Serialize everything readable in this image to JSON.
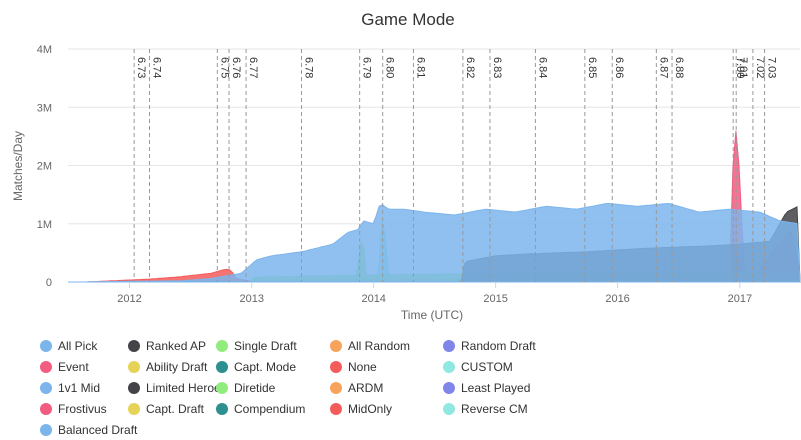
{
  "chart_data": {
    "type": "area",
    "title": "Game Mode",
    "xlabel": "Time (UTC)",
    "ylabel": "Matches/Day",
    "x_ticks": [
      "2012",
      "2013",
      "2014",
      "2015",
      "2016",
      "2017"
    ],
    "y_ticks": [
      "0",
      "1M",
      "2M",
      "3M",
      "4M"
    ],
    "ylim": [
      0,
      4000000
    ],
    "xlim": [
      "2011-07-01",
      "2017-06-30"
    ],
    "grid": "horizontal",
    "legend_position": "bottom",
    "patches": [
      {
        "label": "6.73",
        "date": "2012-01-15"
      },
      {
        "label": "6.74",
        "date": "2012-03-01"
      },
      {
        "label": "6.75",
        "date": "2012-09-20"
      },
      {
        "label": "6.76",
        "date": "2012-10-25"
      },
      {
        "label": "6.77",
        "date": "2012-12-15"
      },
      {
        "label": "6.78",
        "date": "2013-05-30"
      },
      {
        "label": "6.79",
        "date": "2013-11-20"
      },
      {
        "label": "6.80",
        "date": "2014-01-28"
      },
      {
        "label": "6.81",
        "date": "2014-04-30"
      },
      {
        "label": "6.82",
        "date": "2014-09-25"
      },
      {
        "label": "6.83",
        "date": "2014-12-15"
      },
      {
        "label": "6.84",
        "date": "2015-04-30"
      },
      {
        "label": "6.85",
        "date": "2015-09-25"
      },
      {
        "label": "6.86",
        "date": "2015-12-16"
      },
      {
        "label": "6.87",
        "date": "2016-04-26"
      },
      {
        "label": "6.88",
        "date": "2016-06-12"
      },
      {
        "label": "7.00",
        "date": "2016-12-12"
      },
      {
        "label": "7.01",
        "date": "2016-12-21"
      },
      {
        "label": "7.02",
        "date": "2017-02-09"
      },
      {
        "label": "7.03",
        "date": "2017-03-16"
      }
    ],
    "series": [
      {
        "name": "All Pick",
        "color": "#7cb5ec",
        "x": [
          "2011-09-01",
          "2012-06-01",
          "2012-09-01",
          "2012-12-01",
          "2013-01-15",
          "2013-03-01",
          "2013-06-01",
          "2013-09-01",
          "2013-10-15",
          "2013-11-15",
          "2013-12-01",
          "2014-01-01",
          "2014-01-20",
          "2014-02-15",
          "2014-04-01",
          "2014-06-01",
          "2014-09-01",
          "2014-12-01",
          "2015-03-01",
          "2015-06-01",
          "2015-09-01",
          "2015-12-01",
          "2016-03-01",
          "2016-06-01",
          "2016-09-01",
          "2016-12-01",
          "2017-03-01",
          "2017-05-01",
          "2017-06-25"
        ],
        "values": [
          5000,
          20000,
          60000,
          150000,
          380000,
          450000,
          520000,
          650000,
          850000,
          900000,
          1050000,
          1000000,
          1350000,
          1250000,
          1250000,
          1200000,
          1150000,
          1250000,
          1200000,
          1300000,
          1250000,
          1350000,
          1300000,
          1350000,
          1200000,
          1250000,
          1200000,
          1050000,
          1000000
        ]
      },
      {
        "name": "Ranked AP",
        "color": "#434348",
        "x": [
          "2014-09-20",
          "2014-10-01",
          "2015-01-01",
          "2015-04-01",
          "2015-07-01",
          "2015-10-01",
          "2016-01-01",
          "2016-04-01",
          "2016-07-01",
          "2016-10-01",
          "2017-01-01",
          "2017-04-01",
          "2017-05-20",
          "2017-06-25"
        ],
        "values": [
          0,
          350000,
          450000,
          480000,
          500000,
          520000,
          550000,
          580000,
          600000,
          620000,
          650000,
          700000,
          1200000,
          1300000
        ]
      },
      {
        "name": "Single Draft",
        "color": "#90ed7d",
        "x": [
          "2013-01-01",
          "2013-06-01",
          "2014-01-01",
          "2015-01-01",
          "2016-01-01",
          "2017-01-01",
          "2017-06-25"
        ],
        "values": [
          80000,
          100000,
          120000,
          150000,
          180000,
          160000,
          140000
        ]
      },
      {
        "name": "All Random",
        "color": "#f7a35c",
        "x": [
          "2013-01-01",
          "2014-01-01",
          "2015-01-01",
          "2016-01-01",
          "2017-01-01",
          "2017-06-25"
        ],
        "values": [
          30000,
          40000,
          50000,
          45000,
          40000,
          35000
        ]
      },
      {
        "name": "Random Draft",
        "color": "#8085e9",
        "x": [
          "2013-01-01",
          "2014-01-01",
          "2015-01-01",
          "2016-01-01",
          "2017-06-25"
        ],
        "values": [
          20000,
          25000,
          30000,
          25000,
          20000
        ]
      },
      {
        "name": "Event",
        "color": "#f15c80",
        "x": [
          "2016-12-01",
          "2016-12-15",
          "2016-12-25",
          "2017-01-15",
          "2017-02-01",
          "2017-06-01",
          "2017-06-25"
        ],
        "values": [
          0,
          2700000,
          2500000,
          100000,
          0,
          900000,
          300000
        ]
      },
      {
        "name": "Ability Draft",
        "color": "#e4d354",
        "x": [
          "2013-12-01",
          "2014-06-01",
          "2015-01-01",
          "2016-01-01",
          "2017-06-25"
        ],
        "values": [
          0,
          30000,
          40000,
          35000,
          30000
        ]
      },
      {
        "name": "Capt. Mode",
        "color": "#2b908f",
        "x": [
          "2012-01-01",
          "2013-01-01",
          "2014-01-01",
          "2015-01-01",
          "2016-01-01",
          "2017-06-25"
        ],
        "values": [
          5000,
          10000,
          15000,
          15000,
          12000,
          10000
        ]
      },
      {
        "name": "None",
        "color": "#f45b5b",
        "x": [
          "2011-09-01",
          "2012-03-01",
          "2012-06-01",
          "2012-09-01",
          "2012-10-15",
          "2012-11-01",
          "2012-11-15",
          "2013-01-01",
          "2017-06-25"
        ],
        "values": [
          3000,
          50000,
          90000,
          150000,
          220000,
          200000,
          60000,
          10000,
          5000
        ]
      },
      {
        "name": "CUSTOM",
        "color": "#91e8e1",
        "x": [
          "2014-01-15",
          "2014-01-22",
          "2014-01-31",
          "2014-02-10",
          "2014-02-20"
        ],
        "values": [
          0,
          1000000,
          1150000,
          300000,
          0
        ]
      },
      {
        "name": "1v1 Mid",
        "color": "#7cb5ec",
        "x": [
          "2015-12-01",
          "2016-04-01",
          "2016-10-01",
          "2017-06-25"
        ],
        "values": [
          0,
          20000,
          25000,
          20000
        ]
      },
      {
        "name": "Limited Heroes",
        "color": "#434348",
        "x": [
          "2012-06-01",
          "2014-01-01",
          "2017-06-25"
        ],
        "values": [
          1000,
          3000,
          2000
        ]
      },
      {
        "name": "Diretide",
        "color": "#90ed7d",
        "x": [
          "2013-11-10",
          "2013-11-20",
          "2013-12-01",
          "2013-12-10"
        ],
        "values": [
          0,
          650000,
          700000,
          0
        ]
      },
      {
        "name": "ARDM",
        "color": "#f7a35c",
        "x": [
          "2016-09-01",
          "2017-01-01",
          "2017-06-25"
        ],
        "values": [
          0,
          15000,
          20000
        ]
      },
      {
        "name": "Least Played",
        "color": "#8085e9",
        "x": [
          "2012-06-01",
          "2014-01-01",
          "2017-06-25"
        ],
        "values": [
          1000,
          2000,
          1000
        ]
      },
      {
        "name": "Frostivus",
        "color": "#f15c80",
        "x": [
          "2016-12-10",
          "2016-12-20",
          "2017-01-02",
          "2017-01-10"
        ],
        "values": [
          0,
          500000,
          400000,
          0
        ]
      },
      {
        "name": "Capt. Draft",
        "color": "#e4d354",
        "x": [
          "2012-06-01",
          "2014-01-01",
          "2017-06-25"
        ],
        "values": [
          1000,
          3000,
          2000
        ]
      },
      {
        "name": "Compendium",
        "color": "#2b908f",
        "x": [
          "2013-05-01",
          "2014-01-01",
          "2017-06-25"
        ],
        "values": [
          0,
          2000,
          1000
        ]
      },
      {
        "name": "MidOnly",
        "color": "#f45b5b",
        "x": [
          "2013-05-01",
          "2014-01-01",
          "2017-06-25"
        ],
        "values": [
          0,
          2000,
          2000
        ]
      },
      {
        "name": "Reverse CM",
        "color": "#91e8e1",
        "x": [
          "2012-06-01",
          "2014-01-01",
          "2017-06-25"
        ],
        "values": [
          1000,
          2000,
          1000
        ]
      },
      {
        "name": "Balanced Draft",
        "color": "#7cb5ec",
        "x": [
          "2016-05-01",
          "2017-01-01",
          "2017-06-25"
        ],
        "values": [
          0,
          5000,
          8000
        ]
      }
    ]
  }
}
